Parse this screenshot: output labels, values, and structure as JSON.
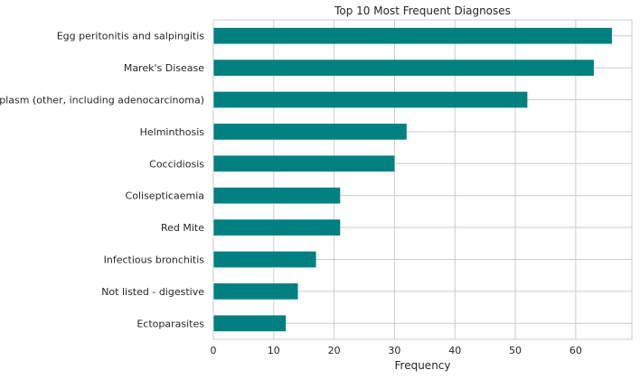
{
  "chart_data": {
    "type": "bar",
    "orientation": "horizontal",
    "title": "Top 10 Most Frequent Diagnoses",
    "xlabel": "Frequency",
    "ylabel": "",
    "categories": [
      "Egg peritonitis and salpingitis",
      "Marek's Disease",
      "Neoplasm (other, including adenocarcinoma)",
      "Helminthosis",
      "Coccidiosis",
      "Colisepticaemia",
      "Red Mite",
      "Infectious bronchitis",
      "Not listed - digestive",
      "Ectoparasites"
    ],
    "values": [
      66,
      63,
      52,
      32,
      30,
      21,
      21,
      17,
      14,
      12
    ],
    "xlim": [
      0,
      69.3
    ],
    "xticks": [
      0,
      10,
      20,
      30,
      40,
      50,
      60
    ],
    "grid": true,
    "bar_color": "#008080",
    "grid_color": "#cccccc",
    "spine_color": "#cccccc"
  }
}
